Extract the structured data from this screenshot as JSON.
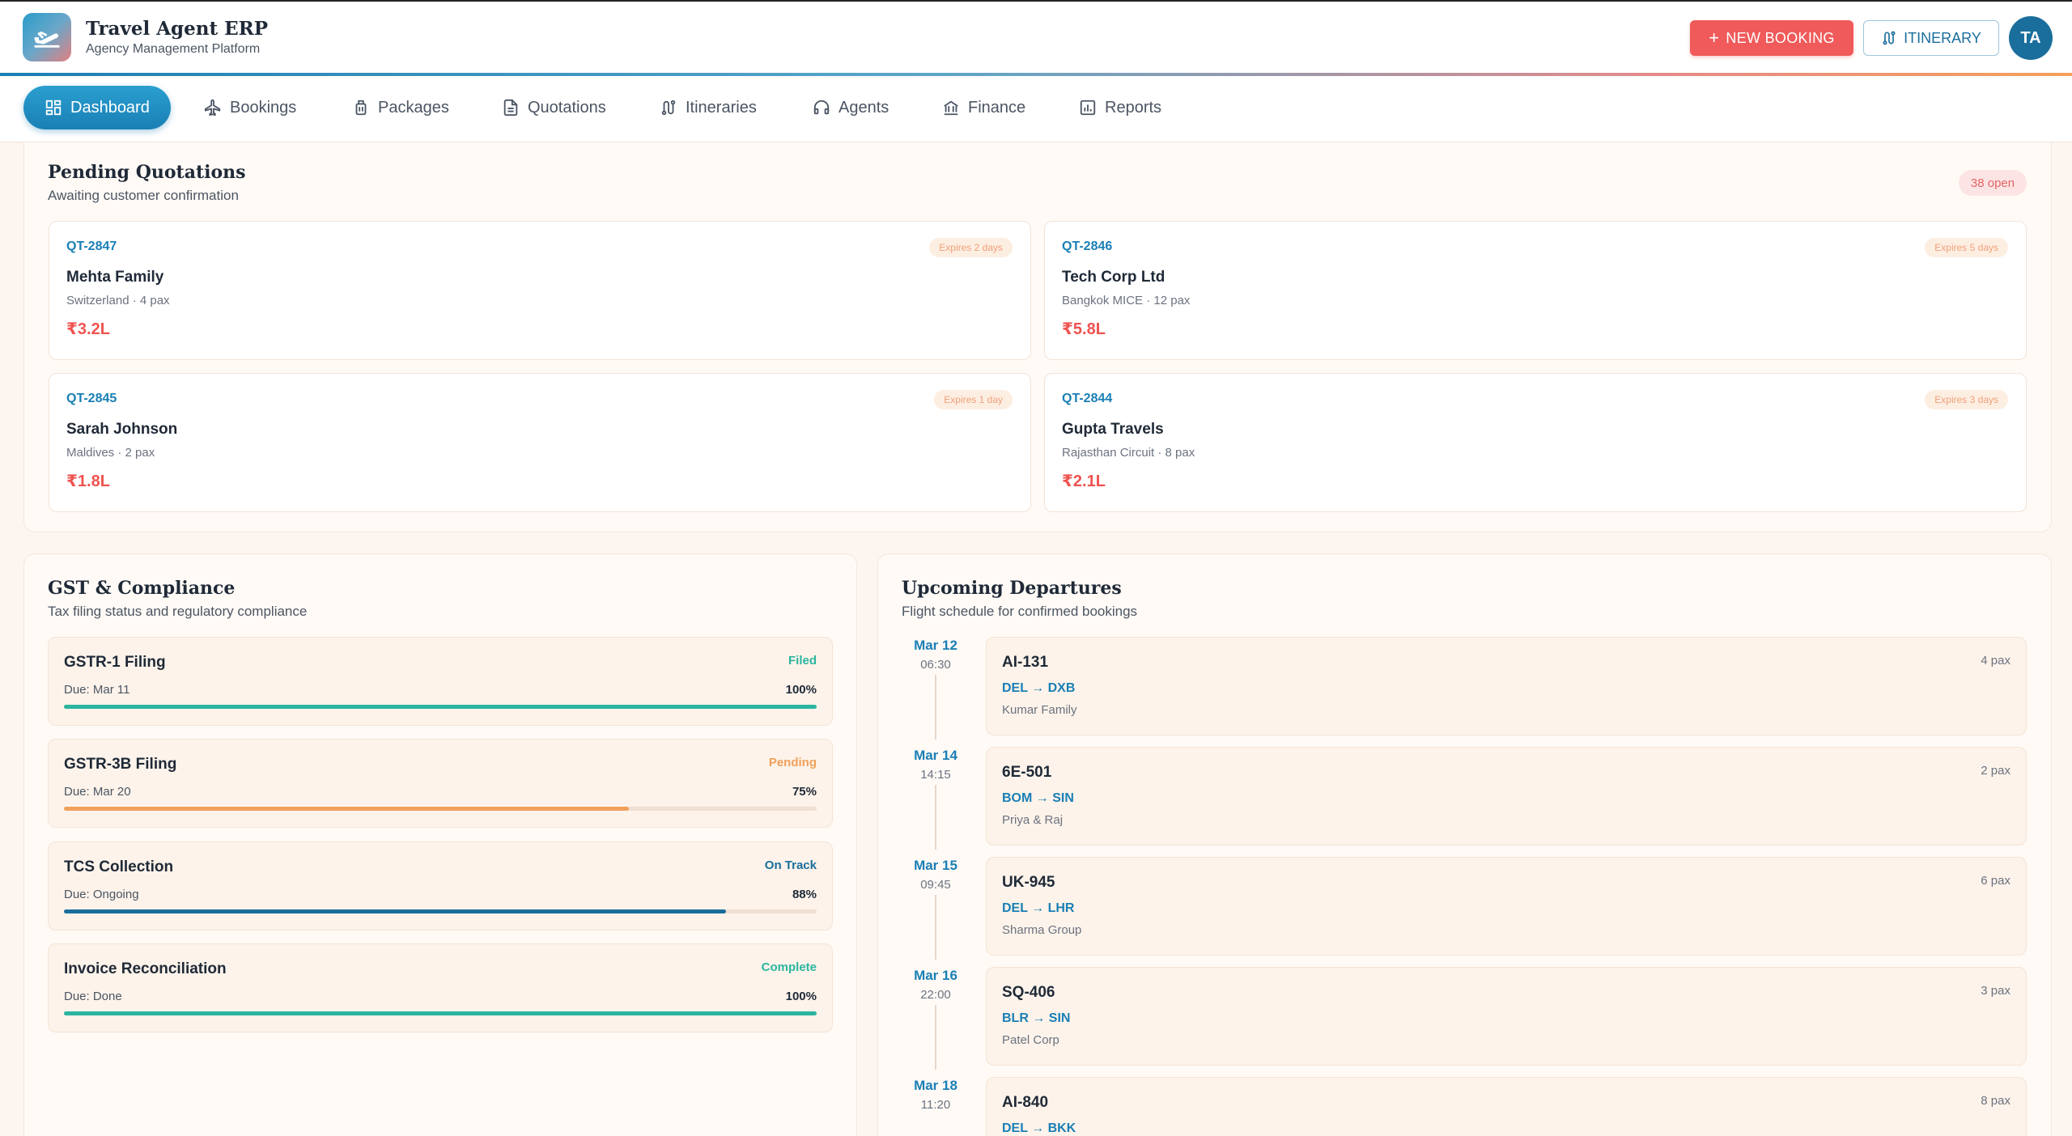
{
  "header": {
    "brand_title": "Travel Agent ERP",
    "brand_subtitle": "Agency Management Platform",
    "new_booking_label": "NEW BOOKING",
    "itinerary_label": "ITINERARY",
    "avatar_initials": "TA"
  },
  "nav": {
    "items": [
      {
        "label": "Dashboard",
        "icon": "grid-icon",
        "active": true
      },
      {
        "label": "Bookings",
        "icon": "plane-icon"
      },
      {
        "label": "Packages",
        "icon": "luggage-icon"
      },
      {
        "label": "Quotations",
        "icon": "document-icon"
      },
      {
        "label": "Itineraries",
        "icon": "route-icon"
      },
      {
        "label": "Agents",
        "icon": "headset-icon"
      },
      {
        "label": "Finance",
        "icon": "bank-icon"
      },
      {
        "label": "Reports",
        "icon": "chart-icon"
      }
    ]
  },
  "pending_quotations": {
    "title": "Pending Quotations",
    "subtitle": "Awaiting customer confirmation",
    "badge": "38 open",
    "quotes": [
      {
        "id": "QT-2847",
        "expires": "Expires 2 days",
        "name": "Mehta Family",
        "details": "Switzerland · 4 pax",
        "amount": "₹3.2L"
      },
      {
        "id": "QT-2846",
        "expires": "Expires 5 days",
        "name": "Tech Corp Ltd",
        "details": "Bangkok MICE · 12 pax",
        "amount": "₹5.8L"
      },
      {
        "id": "QT-2845",
        "expires": "Expires 1 day",
        "name": "Sarah Johnson",
        "details": "Maldives · 2 pax",
        "amount": "₹1.8L"
      },
      {
        "id": "QT-2844",
        "expires": "Expires 3 days",
        "name": "Gupta Travels",
        "details": "Rajasthan Circuit · 8 pax",
        "amount": "₹2.1L"
      }
    ]
  },
  "gst": {
    "title": "GST & Compliance",
    "subtitle": "Tax filing status and regulatory compliance",
    "items": [
      {
        "name": "GSTR-1 Filing",
        "status": "Filed",
        "status_color": "#2bb5a0",
        "due": "Due: Mar 11",
        "percent_label": "100%",
        "progress": 100,
        "bar_color": "#2bb5a0"
      },
      {
        "name": "GSTR-3B Filing",
        "status": "Pending",
        "status_color": "#f0a05a",
        "due": "Due: Mar 20",
        "percent_label": "75%",
        "progress": 75,
        "bar_color": "#f0a05a"
      },
      {
        "name": "TCS Collection",
        "status": "On Track",
        "status_color": "#1a6e9c",
        "due": "Due: Ongoing",
        "percent_label": "88%",
        "progress": 88,
        "bar_color": "#1a6e9c"
      },
      {
        "name": "Invoice Reconciliation",
        "status": "Complete",
        "status_color": "#2bb5a0",
        "due": "Due: Done",
        "percent_label": "100%",
        "progress": 100,
        "bar_color": "#2bb5a0"
      }
    ]
  },
  "departures": {
    "title": "Upcoming Departures",
    "subtitle": "Flight schedule for confirmed bookings",
    "items": [
      {
        "date": "Mar 12",
        "time": "06:30",
        "flight": "AI-131",
        "pax": "4 pax",
        "route": "DEL → DXB",
        "customer": "Kumar Family"
      },
      {
        "date": "Mar 14",
        "time": "14:15",
        "flight": "6E-501",
        "pax": "2 pax",
        "route": "BOM → SIN",
        "customer": "Priya & Raj"
      },
      {
        "date": "Mar 15",
        "time": "09:45",
        "flight": "UK-945",
        "pax": "6 pax",
        "route": "DEL → LHR",
        "customer": "Sharma Group"
      },
      {
        "date": "Mar 16",
        "time": "22:00",
        "flight": "SQ-406",
        "pax": "3 pax",
        "route": "BLR → SIN",
        "customer": "Patel Corp"
      },
      {
        "date": "Mar 18",
        "time": "11:20",
        "flight": "AI-840",
        "pax": "8 pax",
        "route": "DEL → BKK",
        "customer": ""
      }
    ]
  }
}
